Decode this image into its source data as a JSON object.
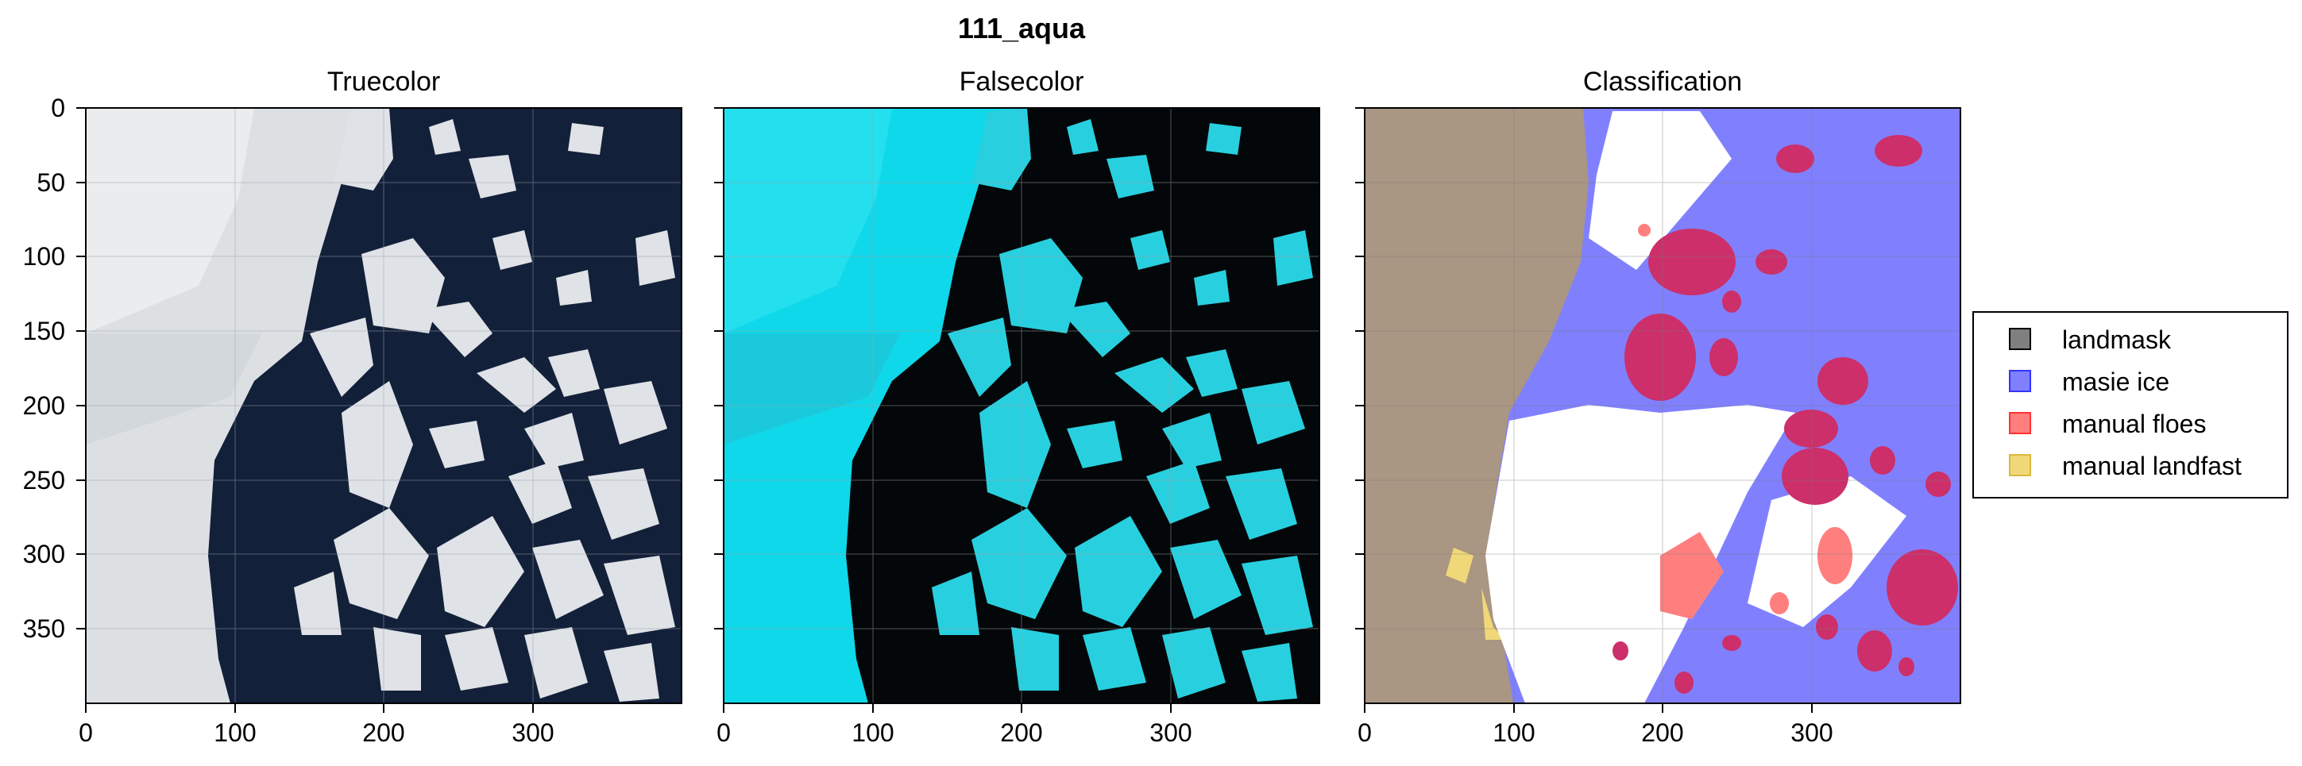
{
  "figure": {
    "suptitle": "111_aqua",
    "panels": [
      {
        "title": "Truecolor"
      },
      {
        "title": "Falsecolor"
      },
      {
        "title": "Classification"
      }
    ],
    "x_ticks": [
      "0",
      "100",
      "200",
      "300"
    ],
    "y_ticks": [
      "0",
      "50",
      "100",
      "150",
      "200",
      "250",
      "300",
      "350"
    ],
    "x_range": [
      0,
      400
    ],
    "y_range": [
      0,
      400
    ],
    "grid": true
  },
  "legend": {
    "items": [
      {
        "label": "landmask",
        "color": "#7f7f7f"
      },
      {
        "label": "masie ice",
        "color": "#8080ff"
      },
      {
        "label": "manual floes",
        "color": "#ff7f7f"
      },
      {
        "label": "manual landfast",
        "color": "#f0d878"
      }
    ]
  },
  "colors": {
    "truecolor_ocean": "#13203a",
    "truecolor_ice": "#dcdfe2",
    "falsecolor_ocean": "#040709",
    "falsecolor_ice": "#26d4e2",
    "land": "#a99683",
    "masie": "#8080ff",
    "floes": "#ff7f7f",
    "floes_overlap": "#cc2f6a",
    "landfast": "#f0d878"
  }
}
